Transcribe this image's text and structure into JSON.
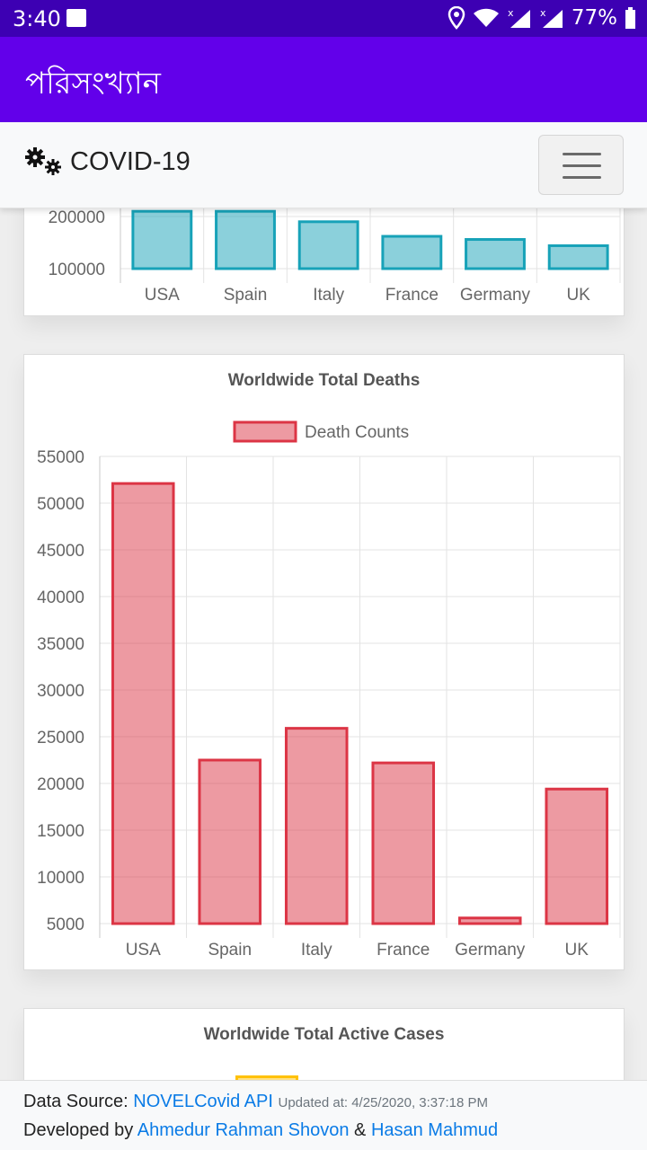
{
  "status_bar": {
    "time": "3:40",
    "battery": "77%",
    "icons": [
      "image-icon",
      "location-icon",
      "wifi-icon",
      "signal-icon",
      "signal-icon",
      "battery-icon"
    ]
  },
  "app_bar": {
    "title": "পরিসংখ্যান"
  },
  "navbar": {
    "brand": "COVID-19",
    "brand_icon": "gears-icon",
    "toggler_icon": "hamburger-menu-icon"
  },
  "charts": {
    "recovered_partial": {
      "y_ticks": [
        "200000",
        "100000"
      ],
      "categories": [
        "USA",
        "Spain",
        "Italy",
        "France",
        "Germany",
        "UK"
      ]
    },
    "deaths": {
      "title": "Worldwide Total Deaths",
      "legend": "Death Counts",
      "y_ticks": [
        "55000",
        "50000",
        "45000",
        "40000",
        "35000",
        "30000",
        "25000",
        "20000",
        "15000",
        "10000",
        "5000"
      ],
      "categories": [
        "USA",
        "Spain",
        "Italy",
        "France",
        "Germany",
        "UK"
      ]
    },
    "active": {
      "title": "Worldwide Total Active Cases"
    }
  },
  "chart_data": [
    {
      "type": "bar",
      "categories": [
        "USA",
        "Spain",
        "Italy",
        "France",
        "Germany",
        "UK"
      ],
      "values": [
        210000,
        210000,
        190000,
        162000,
        156000,
        144000
      ],
      "title": "",
      "ylim": [
        100000,
        210000
      ],
      "grid": true,
      "color": "#17a2b8"
    },
    {
      "type": "bar",
      "title": "Worldwide Total Deaths",
      "categories": [
        "USA",
        "Spain",
        "Italy",
        "France",
        "Germany",
        "UK"
      ],
      "series": [
        {
          "name": "Death Counts",
          "values": [
            52100,
            22500,
            25900,
            22200,
            5600,
            19400
          ]
        }
      ],
      "ylim": [
        5000,
        55000
      ],
      "legend": "top-center",
      "grid": true,
      "color": "#dc3545"
    }
  ],
  "footer": {
    "data_source_label": "Data Source:",
    "data_source_link": "NOVELCovid API",
    "updated": "Updated at: 4/25/2020, 3:37:18 PM",
    "developed_by_label": "Developed by",
    "developer1": "Ahmedur Rahman Shovon",
    "amp": "&",
    "developer2": "Hasan Mahmud"
  },
  "colors": {
    "status_bar": "#3d00b3",
    "app_bar": "#6200ea",
    "teal": "#17a2b8",
    "red": "#dc3545",
    "yellow": "#ffc107",
    "link": "#0a7be6"
  }
}
